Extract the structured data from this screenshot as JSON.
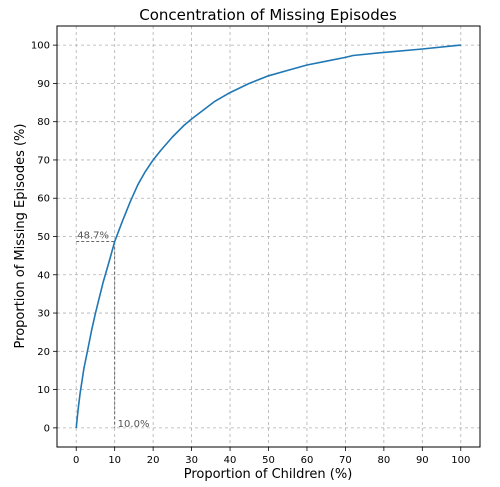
{
  "chart_data": {
    "type": "line",
    "title": "Concentration of Missing Episodes",
    "xlabel": "Proportion of Children (%)",
    "ylabel": "Proportion of Missing Episodes (%)",
    "xlim": [
      -5,
      105
    ],
    "ylim": [
      -5,
      105
    ],
    "xticks": [
      0,
      10,
      20,
      30,
      40,
      50,
      60,
      70,
      80,
      90,
      100
    ],
    "yticks": [
      0,
      10,
      20,
      30,
      40,
      50,
      60,
      70,
      80,
      90,
      100
    ],
    "grid": true,
    "series": [
      {
        "color": "#1f77b4",
        "x": [
          0,
          0.5,
          1,
          2,
          3,
          4,
          5,
          6,
          7,
          8,
          9,
          10,
          12,
          14,
          16,
          18,
          20,
          22,
          25,
          28,
          30,
          33,
          36,
          40,
          45,
          50,
          55,
          60,
          65,
          70,
          72,
          80,
          90,
          100
        ],
        "y": [
          0,
          5,
          9,
          15.5,
          20.5,
          25.5,
          30,
          34,
          38,
          41.5,
          45,
          48.7,
          54,
          59,
          63.5,
          67,
          70,
          72.5,
          76,
          79,
          80.7,
          83,
          85.3,
          87.6,
          90,
          92,
          93.4,
          94.8,
          95.8,
          96.8,
          97.3,
          98.1,
          99,
          100
        ]
      }
    ],
    "annotations": [
      {
        "text": "48.7%",
        "x": 10,
        "y": 48.7
      },
      {
        "text": "10.0%",
        "x": 10,
        "y": 0
      }
    ]
  }
}
